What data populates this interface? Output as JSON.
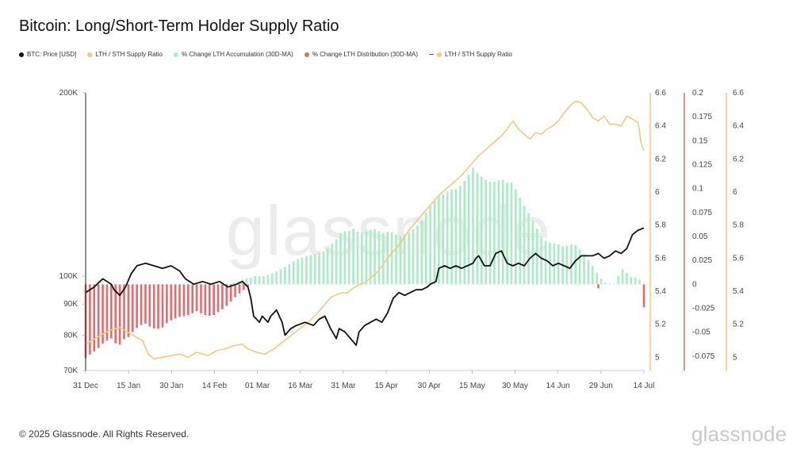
{
  "header": {
    "title": "Bitcoin: Long/Short-Term Holder Supply Ratio"
  },
  "legend": [
    {
      "label": "BTC: Price [USD]",
      "color": "#111111",
      "marker": "dot"
    },
    {
      "label": "LTH / STH Supply Ratio",
      "color": "#f2c77f",
      "marker": "dot"
    },
    {
      "label": "% Change LTH Accumulation (30D-MA)",
      "color": "#a8ecc4",
      "marker": "dot"
    },
    {
      "label": "% Change LTH Distribution (30D-MA)",
      "color": "#e8696b",
      "marker": "dot"
    },
    {
      "label": "LTH / STH Supply Ratio",
      "color": "#f2c77f",
      "marker": "dash-dot"
    }
  ],
  "watermark": "glassnode",
  "footer": {
    "copyright": "© 2025 Glassnode. All Rights Reserved.",
    "brand": "glassnode"
  },
  "chart_data": {
    "type": "line",
    "x_ticks": [
      "31 Dec",
      "15 Jan",
      "30 Jan",
      "14 Feb",
      "01 Mar",
      "16 Mar",
      "31 Mar",
      "15 Apr",
      "30 Apr",
      "15 May",
      "30 May",
      "14 Jun",
      "29 Jun",
      "14 Jul"
    ],
    "x_range_days": [
      0,
      196
    ],
    "price_axis": {
      "scale": "log",
      "range": [
        70000,
        200000
      ],
      "ticks": [
        200000,
        100000,
        90000,
        80000,
        70000
      ],
      "tick_labels": [
        "200K",
        "100K",
        "90K",
        "80K",
        "70K"
      ]
    },
    "ratio_axis": {
      "range": [
        4.92,
        6.6
      ],
      "ticks": [
        6.6,
        6.4,
        6.2,
        6,
        5.8,
        5.6,
        5.4,
        5.2,
        5
      ],
      "tick_labels": [
        "6.6",
        "6.4",
        "6.2",
        "6",
        "5.8",
        "5.6",
        "5.4",
        "5.2",
        "5"
      ]
    },
    "change_axis": {
      "range": [
        -0.09,
        0.2
      ],
      "ticks": [
        0.2,
        0.175,
        0.15,
        0.125,
        0.1,
        0.075,
        0.05,
        0.025,
        0,
        -0.025,
        -0.05,
        -0.075
      ],
      "tick_labels": [
        "0.2",
        "0.175",
        "0.15",
        "0.125",
        "0.1",
        "0.075",
        "0.05",
        "0.025",
        "0",
        "-0.025",
        "-0.05",
        "-0.075"
      ]
    },
    "series": [
      {
        "name": "BTC: Price [USD]",
        "color": "#111111",
        "points": [
          [
            0,
            94000
          ],
          [
            3,
            96000
          ],
          [
            6,
            99000
          ],
          [
            9,
            97000
          ],
          [
            10,
            95000
          ],
          [
            12,
            93000
          ],
          [
            14,
            96000
          ],
          [
            16,
            101000
          ],
          [
            18,
            104000
          ],
          [
            21,
            105000
          ],
          [
            24,
            104000
          ],
          [
            27,
            103000
          ],
          [
            30,
            104000
          ],
          [
            33,
            102000
          ],
          [
            35,
            99000
          ],
          [
            38,
            97000
          ],
          [
            41,
            98000
          ],
          [
            44,
            97000
          ],
          [
            47,
            98000
          ],
          [
            50,
            96000
          ],
          [
            53,
            97000
          ],
          [
            55,
            98000
          ],
          [
            57,
            96000
          ],
          [
            58,
            92000
          ],
          [
            59,
            86000
          ],
          [
            61,
            84000
          ],
          [
            62,
            86000
          ],
          [
            64,
            84000
          ],
          [
            65,
            86000
          ],
          [
            67,
            88000
          ],
          [
            69,
            84000
          ],
          [
            70,
            80000
          ],
          [
            72,
            82000
          ],
          [
            74,
            83000
          ],
          [
            77,
            84000
          ],
          [
            80,
            83000
          ],
          [
            82,
            85000
          ],
          [
            84,
            86000
          ],
          [
            86,
            82000
          ],
          [
            88,
            79000
          ],
          [
            89,
            82000
          ],
          [
            91,
            81000
          ],
          [
            93,
            79000
          ],
          [
            95,
            77000
          ],
          [
            96,
            81000
          ],
          [
            98,
            83000
          ],
          [
            100,
            84000
          ],
          [
            102,
            85000
          ],
          [
            104,
            84000
          ],
          [
            106,
            87000
          ],
          [
            108,
            92000
          ],
          [
            110,
            94000
          ],
          [
            112,
            93000
          ],
          [
            114,
            94000
          ],
          [
            116,
            95000
          ],
          [
            118,
            95000
          ],
          [
            120,
            96000
          ],
          [
            121,
            97000
          ],
          [
            123,
            98000
          ],
          [
            124,
            103000
          ],
          [
            126,
            104000
          ],
          [
            128,
            103000
          ],
          [
            130,
            104000
          ],
          [
            132,
            103000
          ],
          [
            134,
            104000
          ],
          [
            136,
            105000
          ],
          [
            137,
            107000
          ],
          [
            138,
            108000
          ],
          [
            140,
            104000
          ],
          [
            142,
            104000
          ],
          [
            144,
            109000
          ],
          [
            146,
            110000
          ],
          [
            148,
            105000
          ],
          [
            150,
            104000
          ],
          [
            152,
            105000
          ],
          [
            154,
            104000
          ],
          [
            156,
            107000
          ],
          [
            158,
            109000
          ],
          [
            160,
            107000
          ],
          [
            162,
            106000
          ],
          [
            164,
            104000
          ],
          [
            166,
            105000
          ],
          [
            168,
            104000
          ],
          [
            170,
            103000
          ],
          [
            172,
            106000
          ],
          [
            174,
            108000
          ],
          [
            176,
            108000
          ],
          [
            178,
            108000
          ],
          [
            180,
            109000
          ],
          [
            182,
            107000
          ],
          [
            184,
            108000
          ],
          [
            186,
            110000
          ],
          [
            188,
            109000
          ],
          [
            190,
            111000
          ],
          [
            192,
            117000
          ],
          [
            194,
            119000
          ],
          [
            196,
            120000
          ]
        ]
      },
      {
        "name": "LTH / STH Supply Ratio",
        "color": "#f2c77f",
        "points": [
          [
            0,
            5.08
          ],
          [
            4,
            5.12
          ],
          [
            8,
            5.16
          ],
          [
            12,
            5.18
          ],
          [
            16,
            5.14
          ],
          [
            20,
            5.1
          ],
          [
            22,
            5.02
          ],
          [
            24,
            4.99
          ],
          [
            27,
            5.0
          ],
          [
            30,
            5.01
          ],
          [
            33,
            5.02
          ],
          [
            36,
            5.0
          ],
          [
            39,
            5.03
          ],
          [
            43,
            5.01
          ],
          [
            46,
            5.04
          ],
          [
            49,
            5.05
          ],
          [
            52,
            5.07
          ],
          [
            55,
            5.08
          ],
          [
            57,
            5.05
          ],
          [
            60,
            5.03
          ],
          [
            63,
            5.02
          ],
          [
            66,
            5.05
          ],
          [
            69,
            5.09
          ],
          [
            72,
            5.13
          ],
          [
            75,
            5.17
          ],
          [
            78,
            5.21
          ],
          [
            81,
            5.26
          ],
          [
            84,
            5.32
          ],
          [
            86,
            5.36
          ],
          [
            88,
            5.38
          ],
          [
            90,
            5.39
          ],
          [
            92,
            5.39
          ],
          [
            94,
            5.42
          ],
          [
            96,
            5.44
          ],
          [
            98,
            5.45
          ],
          [
            100,
            5.48
          ],
          [
            102,
            5.51
          ],
          [
            104,
            5.55
          ],
          [
            106,
            5.6
          ],
          [
            108,
            5.64
          ],
          [
            110,
            5.68
          ],
          [
            112,
            5.73
          ],
          [
            114,
            5.78
          ],
          [
            116,
            5.82
          ],
          [
            118,
            5.86
          ],
          [
            120,
            5.9
          ],
          [
            122,
            5.94
          ],
          [
            124,
            5.98
          ],
          [
            126,
            6.01
          ],
          [
            128,
            6.04
          ],
          [
            130,
            6.07
          ],
          [
            132,
            6.1
          ],
          [
            134,
            6.14
          ],
          [
            136,
            6.18
          ],
          [
            138,
            6.22
          ],
          [
            140,
            6.25
          ],
          [
            142,
            6.28
          ],
          [
            144,
            6.31
          ],
          [
            146,
            6.34
          ],
          [
            148,
            6.38
          ],
          [
            150,
            6.43
          ],
          [
            152,
            6.38
          ],
          [
            154,
            6.35
          ],
          [
            156,
            6.32
          ],
          [
            158,
            6.36
          ],
          [
            160,
            6.35
          ],
          [
            162,
            6.38
          ],
          [
            164,
            6.4
          ],
          [
            166,
            6.43
          ],
          [
            168,
            6.48
          ],
          [
            170,
            6.52
          ],
          [
            172,
            6.55
          ],
          [
            174,
            6.54
          ],
          [
            176,
            6.5
          ],
          [
            178,
            6.45
          ],
          [
            180,
            6.43
          ],
          [
            182,
            6.46
          ],
          [
            184,
            6.41
          ],
          [
            186,
            6.41
          ],
          [
            188,
            6.4
          ],
          [
            190,
            6.46
          ],
          [
            192,
            6.44
          ],
          [
            194,
            6.42
          ],
          [
            195,
            6.3
          ],
          [
            196,
            6.25
          ]
        ]
      },
      {
        "name": "% Change LTH Accumulation (30D-MA)",
        "color": "#a8ecc4",
        "points": [
          [
            52,
            0.002
          ],
          [
            54,
            0.004
          ],
          [
            56,
            0.006
          ],
          [
            58,
            0.007
          ],
          [
            60,
            0.009
          ],
          [
            62,
            0.008
          ],
          [
            64,
            0.01
          ],
          [
            66,
            0.012
          ],
          [
            68,
            0.015
          ],
          [
            70,
            0.018
          ],
          [
            72,
            0.022
          ],
          [
            74,
            0.026
          ],
          [
            76,
            0.028
          ],
          [
            78,
            0.03
          ],
          [
            80,
            0.031
          ],
          [
            82,
            0.033
          ],
          [
            84,
            0.035
          ],
          [
            86,
            0.041
          ],
          [
            88,
            0.047
          ],
          [
            90,
            0.056
          ],
          [
            92,
            0.055
          ],
          [
            94,
            0.058
          ],
          [
            96,
            0.054
          ],
          [
            98,
            0.055
          ],
          [
            100,
            0.057
          ],
          [
            102,
            0.058
          ],
          [
            104,
            0.053
          ],
          [
            106,
            0.055
          ],
          [
            108,
            0.054
          ],
          [
            110,
            0.05
          ],
          [
            112,
            0.052
          ],
          [
            114,
            0.055
          ],
          [
            116,
            0.06
          ],
          [
            118,
            0.066
          ],
          [
            120,
            0.078
          ],
          [
            122,
            0.086
          ],
          [
            124,
            0.092
          ],
          [
            126,
            0.095
          ],
          [
            128,
            0.099
          ],
          [
            130,
            0.1
          ],
          [
            132,
            0.104
          ],
          [
            134,
            0.112
          ],
          [
            136,
            0.122
          ],
          [
            138,
            0.115
          ],
          [
            140,
            0.11
          ],
          [
            142,
            0.107
          ],
          [
            144,
            0.107
          ],
          [
            146,
            0.11
          ],
          [
            148,
            0.106
          ],
          [
            150,
            0.106
          ],
          [
            152,
            0.093
          ],
          [
            154,
            0.082
          ],
          [
            156,
            0.072
          ],
          [
            158,
            0.061
          ],
          [
            160,
            0.05
          ],
          [
            162,
            0.044
          ],
          [
            164,
            0.043
          ],
          [
            166,
            0.042
          ],
          [
            168,
            0.039
          ],
          [
            170,
            0.042
          ],
          [
            172,
            0.041
          ],
          [
            174,
            0.035
          ],
          [
            176,
            0.028
          ],
          [
            178,
            0.019
          ],
          [
            180,
            0.01
          ],
          [
            182,
            0.002
          ],
          [
            184,
            0.001
          ],
          [
            186,
            0.0
          ],
          [
            188,
            0.017
          ],
          [
            190,
            0.012
          ],
          [
            192,
            0.006
          ],
          [
            194,
            0.008
          ],
          [
            195,
            0.002
          ]
        ]
      },
      {
        "name": "% Change LTH Distribution (30D-MA)",
        "color": "#e8696b",
        "points": [
          [
            0,
            -0.077
          ],
          [
            2,
            -0.072
          ],
          [
            4,
            -0.068
          ],
          [
            6,
            -0.062
          ],
          [
            8,
            -0.058
          ],
          [
            10,
            -0.055
          ],
          [
            11,
            -0.068
          ],
          [
            13,
            -0.058
          ],
          [
            15,
            -0.055
          ],
          [
            17,
            -0.048
          ],
          [
            19,
            -0.043
          ],
          [
            21,
            -0.041
          ],
          [
            23,
            -0.045
          ],
          [
            25,
            -0.047
          ],
          [
            27,
            -0.045
          ],
          [
            29,
            -0.039
          ],
          [
            31,
            -0.036
          ],
          [
            33,
            -0.034
          ],
          [
            35,
            -0.033
          ],
          [
            37,
            -0.031
          ],
          [
            39,
            -0.028
          ],
          [
            41,
            -0.031
          ],
          [
            43,
            -0.033
          ],
          [
            45,
            -0.032
          ],
          [
            47,
            -0.028
          ],
          [
            49,
            -0.024
          ],
          [
            51,
            -0.018
          ],
          [
            53,
            -0.012
          ],
          [
            55,
            -0.007
          ],
          [
            57,
            -0.002
          ],
          [
            180,
            -0.004
          ],
          [
            196,
            -0.024
          ]
        ]
      }
    ]
  }
}
